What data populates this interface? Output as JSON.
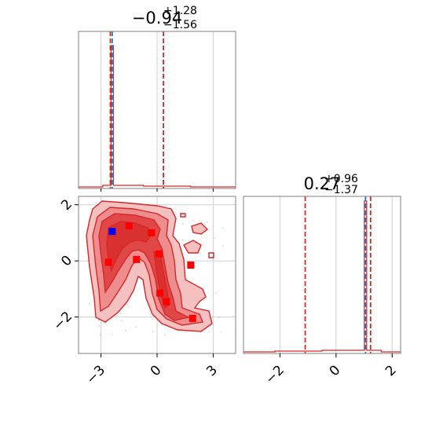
{
  "chart_data": [
    {
      "type": "histogram",
      "panel": "top-left marginal",
      "title": {
        "median": "−0.94",
        "upper": "+1.28",
        "lower": "−1.56"
      },
      "xlim": [
        -4.2,
        4.2
      ],
      "grid": true,
      "peak_x": -2.4,
      "vlines": {
        "quantiles": {
          "values": [
            -2.5,
            0.34
          ],
          "color": "#d62728",
          "style": "dashed"
        },
        "truth": {
          "value": -2.4,
          "color": "#1f77b4",
          "style": "dashed"
        }
      },
      "hist_color": "#d62728"
    },
    {
      "type": "contour",
      "panel": "bottom-left 2D",
      "xlim": [
        -4.2,
        4.2
      ],
      "ylim": [
        -3.3,
        2.3
      ],
      "xticks": [
        -3,
        0,
        3
      ],
      "yticks": [
        -2,
        0,
        2
      ],
      "xtick_labels": [
        "−3",
        "0",
        "3"
      ],
      "ytick_labels": [
        "−2",
        "0",
        "2"
      ],
      "grid": true,
      "colors": {
        "levels": [
          "#f4c0c0",
          "#ee8d8d",
          "#e04848",
          "#d93030"
        ],
        "line": "#d62728",
        "scatter": "#d62728"
      },
      "red_points": [
        [
          -2.6,
          -0.05
        ],
        [
          -1.5,
          1.25
        ],
        [
          -1.1,
          0.05
        ],
        [
          -0.3,
          1.0
        ],
        [
          0.1,
          0.25
        ],
        [
          1.8,
          -0.15
        ],
        [
          0.15,
          -1.15
        ],
        [
          0.5,
          -1.45
        ],
        [
          1.9,
          -2.05
        ]
      ],
      "blue_point": [
        -2.4,
        1.05
      ],
      "point_colors": {
        "red": "#ff0000",
        "blue": "#0000ff"
      }
    },
    {
      "type": "histogram",
      "panel": "bottom-right marginal",
      "title": {
        "median": "0.27",
        "upper": "+0.96",
        "lower": "−1.37"
      },
      "xlim": [
        -3.3,
        2.3
      ],
      "xticks": [
        -2,
        0,
        2
      ],
      "xtick_labels": [
        "−2",
        "0",
        "2"
      ],
      "grid": true,
      "peak_x": 1.05,
      "vlines": {
        "quantiles": {
          "values": [
            -1.1,
            1.23
          ],
          "color": "#d62728",
          "style": "dashed"
        },
        "truth": {
          "value": 1.05,
          "color": "#1f77b4",
          "style": "dashed"
        }
      },
      "hist_color": "#d62728"
    }
  ]
}
